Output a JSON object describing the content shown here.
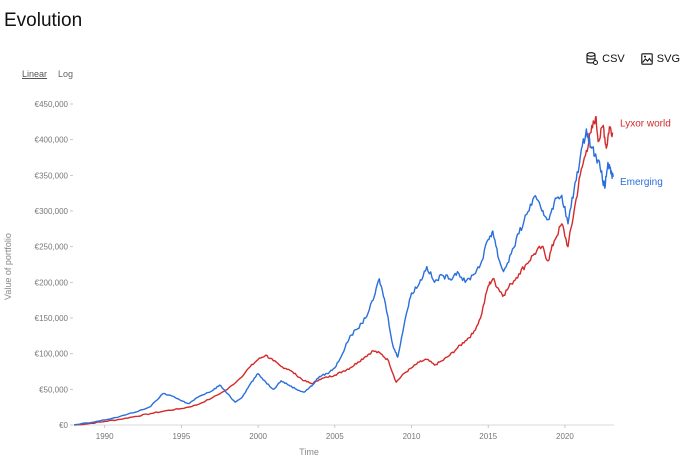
{
  "header": {
    "title": "Evolution"
  },
  "toolbar": {
    "csv_label": "CSV",
    "svg_label": "SVG"
  },
  "scale_switch": {
    "linear_label": "Linear",
    "log_label": "Log",
    "active": "linear"
  },
  "colors": {
    "lyxor_world": "#d42a2a",
    "emerging": "#2a6fdb",
    "axis_text": "#777777"
  },
  "chart_data": {
    "type": "line",
    "title": "Evolution",
    "xlabel": "Time",
    "ylabel": "Value of portfolio",
    "xlim": [
      1988.0,
      2023.2
    ],
    "ylim": [
      0,
      450000
    ],
    "x_ticks": [
      1990,
      1995,
      2000,
      2005,
      2010,
      2015,
      2020
    ],
    "y_ticks": [
      0,
      50000,
      100000,
      150000,
      200000,
      250000,
      300000,
      350000,
      400000,
      450000
    ],
    "y_tick_labels": [
      "€0",
      "€50,000",
      "€100,000",
      "€150,000",
      "€200,000",
      "€250,000",
      "€300,000",
      "€350,000",
      "€400,000",
      "€450,000"
    ],
    "series": [
      {
        "name": "Lyxor world",
        "color": "#d42a2a",
        "points": [
          [
            1988.0,
            0
          ],
          [
            1989.0,
            2000
          ],
          [
            1990.0,
            5000
          ],
          [
            1991.0,
            8000
          ],
          [
            1992.0,
            12000
          ],
          [
            1993.0,
            16000
          ],
          [
            1994.0,
            20000
          ],
          [
            1995.0,
            23000
          ],
          [
            1996.0,
            28000
          ],
          [
            1997.0,
            38000
          ],
          [
            1998.0,
            50000
          ],
          [
            1998.8,
            65000
          ],
          [
            1999.5,
            82000
          ],
          [
            2000.0,
            92000
          ],
          [
            2000.5,
            98000
          ],
          [
            2001.0,
            90000
          ],
          [
            2001.5,
            82000
          ],
          [
            2002.0,
            78000
          ],
          [
            2002.5,
            70000
          ],
          [
            2003.0,
            62000
          ],
          [
            2003.5,
            58000
          ],
          [
            2004.0,
            64000
          ],
          [
            2004.5,
            67000
          ],
          [
            2005.0,
            70000
          ],
          [
            2005.5,
            75000
          ],
          [
            2006.0,
            80000
          ],
          [
            2006.5,
            88000
          ],
          [
            2007.0,
            96000
          ],
          [
            2007.5,
            104000
          ],
          [
            2008.0,
            100000
          ],
          [
            2008.5,
            90000
          ],
          [
            2009.0,
            60000
          ],
          [
            2009.5,
            72000
          ],
          [
            2010.0,
            80000
          ],
          [
            2010.5,
            88000
          ],
          [
            2011.0,
            92000
          ],
          [
            2011.5,
            84000
          ],
          [
            2012.0,
            90000
          ],
          [
            2012.5,
            98000
          ],
          [
            2013.0,
            108000
          ],
          [
            2013.5,
            118000
          ],
          [
            2014.0,
            128000
          ],
          [
            2014.5,
            150000
          ],
          [
            2015.0,
            195000
          ],
          [
            2015.3,
            205000
          ],
          [
            2015.7,
            190000
          ],
          [
            2016.0,
            182000
          ],
          [
            2016.5,
            198000
          ],
          [
            2017.0,
            212000
          ],
          [
            2017.5,
            226000
          ],
          [
            2018.0,
            240000
          ],
          [
            2018.5,
            250000
          ],
          [
            2018.9,
            230000
          ],
          [
            2019.3,
            258000
          ],
          [
            2019.8,
            282000
          ],
          [
            2020.2,
            250000
          ],
          [
            2020.6,
            300000
          ],
          [
            2021.0,
            350000
          ],
          [
            2021.4,
            385000
          ],
          [
            2021.7,
            410000
          ],
          [
            2022.0,
            432000
          ],
          [
            2022.2,
            398000
          ],
          [
            2022.5,
            420000
          ],
          [
            2022.7,
            388000
          ],
          [
            2022.9,
            418000
          ],
          [
            2023.1,
            410000
          ]
        ]
      },
      {
        "name": "Emerging",
        "color": "#2a6fdb",
        "points": [
          [
            1988.0,
            0
          ],
          [
            1989.0,
            3000
          ],
          [
            1990.0,
            7000
          ],
          [
            1991.0,
            12000
          ],
          [
            1992.0,
            18000
          ],
          [
            1993.0,
            26000
          ],
          [
            1993.8,
            44000
          ],
          [
            1994.5,
            40000
          ],
          [
            1995.0,
            34000
          ],
          [
            1995.5,
            30000
          ],
          [
            1996.0,
            38000
          ],
          [
            1997.0,
            48000
          ],
          [
            1997.5,
            56000
          ],
          [
            1998.0,
            44000
          ],
          [
            1998.5,
            32000
          ],
          [
            1999.0,
            40000
          ],
          [
            1999.5,
            58000
          ],
          [
            2000.0,
            72000
          ],
          [
            2000.5,
            60000
          ],
          [
            2001.0,
            50000
          ],
          [
            2001.5,
            62000
          ],
          [
            2002.0,
            56000
          ],
          [
            2002.5,
            50000
          ],
          [
            2003.0,
            46000
          ],
          [
            2003.5,
            55000
          ],
          [
            2004.0,
            68000
          ],
          [
            2004.5,
            72000
          ],
          [
            2005.0,
            80000
          ],
          [
            2005.5,
            100000
          ],
          [
            2006.0,
            125000
          ],
          [
            2006.5,
            135000
          ],
          [
            2007.0,
            150000
          ],
          [
            2007.5,
            175000
          ],
          [
            2007.9,
            205000
          ],
          [
            2008.3,
            170000
          ],
          [
            2008.8,
            110000
          ],
          [
            2009.1,
            95000
          ],
          [
            2009.6,
            150000
          ],
          [
            2010.0,
            185000
          ],
          [
            2010.5,
            198000
          ],
          [
            2011.0,
            222000
          ],
          [
            2011.5,
            200000
          ],
          [
            2012.0,
            210000
          ],
          [
            2012.5,
            205000
          ],
          [
            2013.0,
            215000
          ],
          [
            2013.5,
            200000
          ],
          [
            2014.0,
            210000
          ],
          [
            2014.5,
            225000
          ],
          [
            2015.0,
            260000
          ],
          [
            2015.3,
            272000
          ],
          [
            2015.7,
            232000
          ],
          [
            2016.0,
            215000
          ],
          [
            2016.5,
            240000
          ],
          [
            2017.0,
            268000
          ],
          [
            2017.5,
            295000
          ],
          [
            2018.0,
            320000
          ],
          [
            2018.5,
            300000
          ],
          [
            2018.9,
            288000
          ],
          [
            2019.3,
            312000
          ],
          [
            2019.8,
            322000
          ],
          [
            2020.2,
            282000
          ],
          [
            2020.6,
            330000
          ],
          [
            2021.0,
            375000
          ],
          [
            2021.4,
            415000
          ],
          [
            2021.7,
            390000
          ],
          [
            2022.0,
            380000
          ],
          [
            2022.3,
            360000
          ],
          [
            2022.6,
            332000
          ],
          [
            2022.8,
            368000
          ],
          [
            2023.0,
            352000
          ],
          [
            2023.15,
            348000
          ]
        ]
      }
    ]
  }
}
